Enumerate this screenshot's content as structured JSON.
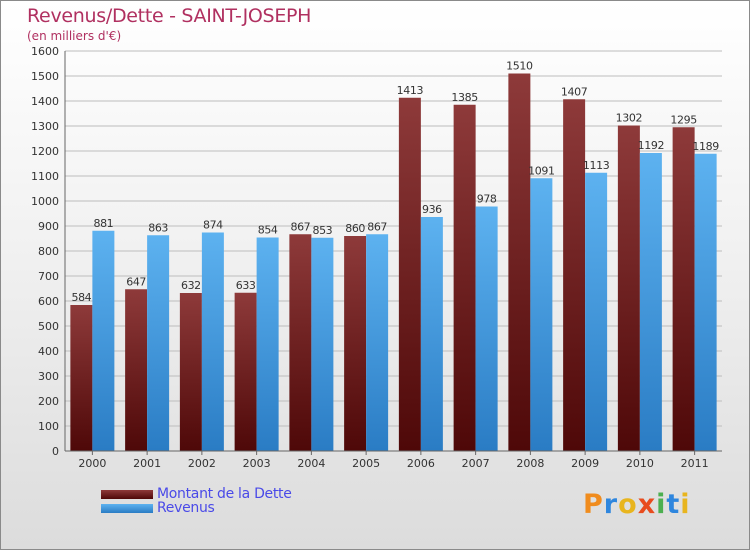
{
  "chart_data": {
    "type": "bar",
    "title": "Revenus/Dette - SAINT-JOSEPH",
    "subtitle": "(en milliers d'€)",
    "categories": [
      "2000",
      "2001",
      "2002",
      "2003",
      "2004",
      "2005",
      "2006",
      "2007",
      "2008",
      "2009",
      "2010",
      "2011"
    ],
    "series": [
      {
        "name": "Montant de la Dette",
        "color": "#7a1c1c",
        "values": [
          584,
          647,
          632,
          633,
          867,
          860,
          1413,
          1385,
          1510,
          1407,
          1302,
          1295
        ]
      },
      {
        "name": "Revenus",
        "color": "#4aa3e6",
        "values": [
          881,
          863,
          874,
          854,
          853,
          867,
          936,
          978,
          1091,
          1113,
          1192,
          1189
        ]
      }
    ],
    "ylim": [
      0,
      1600
    ],
    "yticks": [
      0,
      100,
      200,
      300,
      400,
      500,
      600,
      700,
      800,
      900,
      1000,
      1100,
      1200,
      1300,
      1400,
      1500,
      1600
    ],
    "grid": true,
    "legend_position": "bottom-left"
  },
  "logo": {
    "text": "Proxiti",
    "letters": [
      "P",
      "r",
      "o",
      "x",
      "i",
      "t",
      "i"
    ],
    "colors": [
      "#f08c1e",
      "#2e86de",
      "#e8b51e",
      "#e84c1e",
      "#4caf50",
      "#2e86de",
      "#e8b51e"
    ]
  }
}
